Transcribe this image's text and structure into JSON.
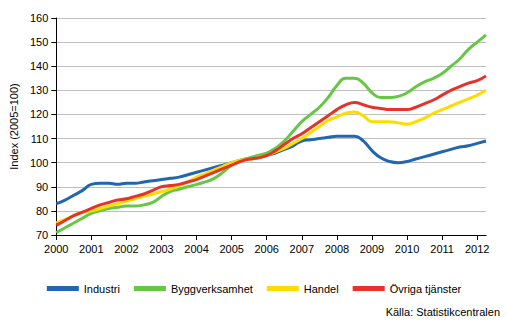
{
  "chart_data": {
    "type": "line",
    "y_label": "Index (2005=100)",
    "source": "Källa: Statistikcentralen",
    "categories": [
      "2000",
      null,
      null,
      null,
      "2001",
      null,
      null,
      null,
      "2002",
      null,
      null,
      null,
      "2003",
      null,
      null,
      null,
      "2004",
      null,
      null,
      null,
      "2005",
      null,
      null,
      null,
      "2006",
      null,
      null,
      null,
      "2007",
      null,
      null,
      null,
      "2008",
      null,
      null,
      null,
      "2009",
      null,
      null,
      null,
      "2010",
      null,
      null,
      null,
      "2011",
      null,
      null,
      null,
      "2012",
      null
    ],
    "series": [
      {
        "name": "Industri",
        "color": "#2166b0",
        "values": [
          83,
          84.5,
          86.5,
          88.5,
          91,
          91.5,
          91.5,
          91,
          91.5,
          91.5,
          92,
          92.5,
          93,
          93.5,
          94,
          95,
          96,
          97,
          98,
          99,
          100,
          101,
          101.5,
          102,
          103,
          104,
          105.5,
          107,
          109,
          109.5,
          110,
          110.5,
          111,
          111,
          111,
          109,
          105,
          102,
          100.5,
          100,
          100.5,
          101.5,
          102.5,
          103.5,
          104.5,
          105.5,
          106.5,
          107,
          108,
          109
        ]
      },
      {
        "name": "Byggverksamhet",
        "color": "#66c744",
        "values": [
          71,
          73,
          75,
          77,
          79,
          80,
          81,
          81.5,
          82,
          82,
          82.5,
          83.5,
          86,
          88,
          89,
          90,
          91,
          92,
          93.5,
          96,
          99,
          101,
          102,
          103,
          104,
          106,
          109,
          113,
          117,
          120,
          123,
          127,
          132,
          135,
          135,
          133,
          129,
          127,
          127,
          127.5,
          129,
          131.5,
          133.5,
          135,
          137,
          140,
          143,
          147,
          150,
          153
        ]
      },
      {
        "name": "Handel",
        "color": "#ffdc00",
        "values": [
          75,
          76.5,
          78,
          79.5,
          80,
          81,
          82,
          83,
          84,
          85,
          86,
          87,
          88,
          89,
          90.5,
          92,
          94,
          95.5,
          97,
          98.5,
          100,
          101,
          101.5,
          102,
          103,
          104.5,
          106,
          108,
          110,
          112.5,
          115,
          117.5,
          119,
          120.5,
          121,
          119.5,
          117,
          117,
          117,
          116.5,
          116,
          117,
          118.5,
          120.5,
          122,
          123.5,
          125,
          126.5,
          128,
          130
        ]
      },
      {
        "name": "Övriga tjänster",
        "color": "#e6332a",
        "values": [
          74,
          76,
          78,
          79.5,
          81,
          82.5,
          83.5,
          84.5,
          85,
          86,
          87,
          88.5,
          90,
          90.5,
          91,
          92,
          93,
          94.5,
          96,
          97.5,
          99,
          100.5,
          101.5,
          102,
          103,
          105,
          107.5,
          110,
          112,
          114.5,
          117,
          119.5,
          122,
          124,
          125,
          124,
          123,
          122.5,
          122,
          122,
          122,
          123,
          124.5,
          126,
          128,
          130,
          131.5,
          133,
          134,
          136
        ]
      }
    ],
    "ylim": [
      70,
      160
    ],
    "yticks": [
      70,
      80,
      90,
      100,
      110,
      120,
      130,
      140,
      150,
      160
    ],
    "grid": true,
    "legend": "bottom"
  }
}
